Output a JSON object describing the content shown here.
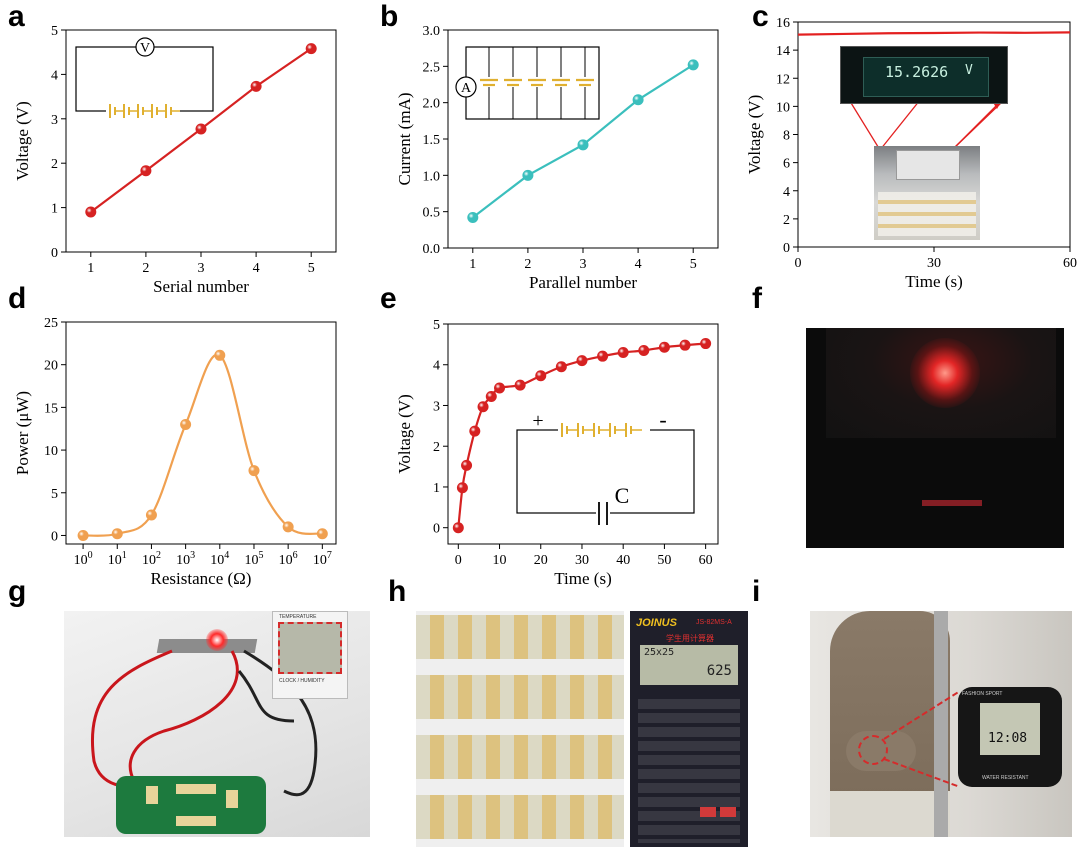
{
  "panels": {
    "a": "a",
    "b": "b",
    "c": "c",
    "d": "d",
    "e": "e",
    "f": "f",
    "g": "g",
    "h": "h",
    "i": "i"
  },
  "chart_data": [
    {
      "id": "a",
      "type": "line",
      "title": "",
      "x": [
        1,
        2,
        3,
        4,
        5
      ],
      "series": [
        {
          "values": [
            0.9,
            1.83,
            2.77,
            3.73,
            4.58
          ],
          "color": "#d62222"
        }
      ],
      "xlabel": "Serial number",
      "ylabel": "Voltage (V)",
      "xlim": [
        0.55,
        5.45
      ],
      "ylim": [
        0,
        5
      ],
      "xticks": [
        1,
        2,
        3,
        4,
        5
      ],
      "yticks": [
        0,
        1,
        2,
        3,
        4,
        5
      ],
      "inset": {
        "meter": "V"
      }
    },
    {
      "id": "b",
      "type": "line",
      "title": "",
      "x": [
        1,
        2,
        3,
        4,
        5
      ],
      "series": [
        {
          "values": [
            0.42,
            1.0,
            1.42,
            2.04,
            2.52
          ],
          "color": "#3bbfbd"
        }
      ],
      "xlabel": "Parallel number",
      "ylabel": "Current (mA)",
      "xlim": [
        0.55,
        5.45
      ],
      "ylim": [
        0,
        3.0
      ],
      "xticks": [
        1,
        2,
        3,
        4,
        5
      ],
      "yticks": [
        "0.0",
        "0.5",
        "1.0",
        "1.5",
        "2.0",
        "2.5",
        "3.0"
      ],
      "inset": {
        "meter": "A"
      }
    },
    {
      "id": "c",
      "type": "line",
      "title": "",
      "x": [
        0,
        10,
        20,
        30,
        40,
        50,
        60
      ],
      "series": [
        {
          "values": [
            15.1,
            15.15,
            15.2,
            15.22,
            15.25,
            15.23,
            15.26
          ],
          "color": "#e32020"
        }
      ],
      "xlabel": "Time (s)",
      "ylabel": "Voltage (V)",
      "xlim": [
        0,
        60
      ],
      "ylim": [
        0,
        16
      ],
      "xticks": [
        0,
        30,
        60
      ],
      "yticks": [
        0,
        2,
        4,
        6,
        8,
        10,
        12,
        14,
        16
      ],
      "inset": {
        "meter_reading": "15.2626",
        "meter_unit": "V"
      }
    },
    {
      "id": "d",
      "type": "line",
      "title": "",
      "xscale": "log",
      "x": [
        1,
        10,
        100,
        1000,
        10000,
        100000,
        1000000,
        10000000
      ],
      "series": [
        {
          "values": [
            0.0,
            0.2,
            2.4,
            13.0,
            21.1,
            7.6,
            1.0,
            0.2
          ],
          "color": "#f0a050"
        }
      ],
      "xlabel": "Resistance (Ω)",
      "ylabel": "Power (μW)",
      "xlim_log10": [
        -0.5,
        7.4
      ],
      "ylim": [
        -1,
        25
      ],
      "xticks": [
        "10^0",
        "10^1",
        "10^2",
        "10^3",
        "10^4",
        "10^5",
        "10^6",
        "10^7"
      ],
      "yticks": [
        0,
        5,
        10,
        15,
        20,
        25
      ]
    },
    {
      "id": "e",
      "type": "line",
      "title": "",
      "x": [
        0,
        1,
        2,
        4,
        6,
        8,
        10,
        15,
        20,
        25,
        30,
        35,
        40,
        45,
        50,
        55,
        60
      ],
      "series": [
        {
          "values": [
            0.0,
            0.98,
            1.53,
            2.37,
            2.97,
            3.22,
            3.43,
            3.5,
            3.73,
            3.95,
            4.1,
            4.21,
            4.3,
            4.35,
            4.43,
            4.48,
            4.52
          ],
          "color": "#d62222"
        }
      ],
      "xlabel": "Time (s)",
      "ylabel": "Voltage (V)",
      "xlim": [
        -2.5,
        63
      ],
      "ylim": [
        -0.4,
        5
      ],
      "xticks": [
        0,
        10,
        20,
        30,
        40,
        50,
        60
      ],
      "yticks": [
        0,
        1,
        2,
        3,
        4,
        5
      ],
      "inset": {
        "plus": "+",
        "minus": "-",
        "cap": "C"
      }
    }
  ],
  "photos": {
    "h_calc_brand": "JOINUS",
    "h_calc_model": "JS-82MS-A",
    "h_calc_cn": "学生用计算器",
    "h_calc_expr": "25x25",
    "h_calc_result": "625",
    "g_meter_top": "TEMPERATURE",
    "g_meter_bottom": "CLOCK / HUMIDITY",
    "i_watch_brand": "FASHION SPORT",
    "i_watch_bottom": "WATER RESISTANT",
    "i_watch_time": "12:08"
  }
}
